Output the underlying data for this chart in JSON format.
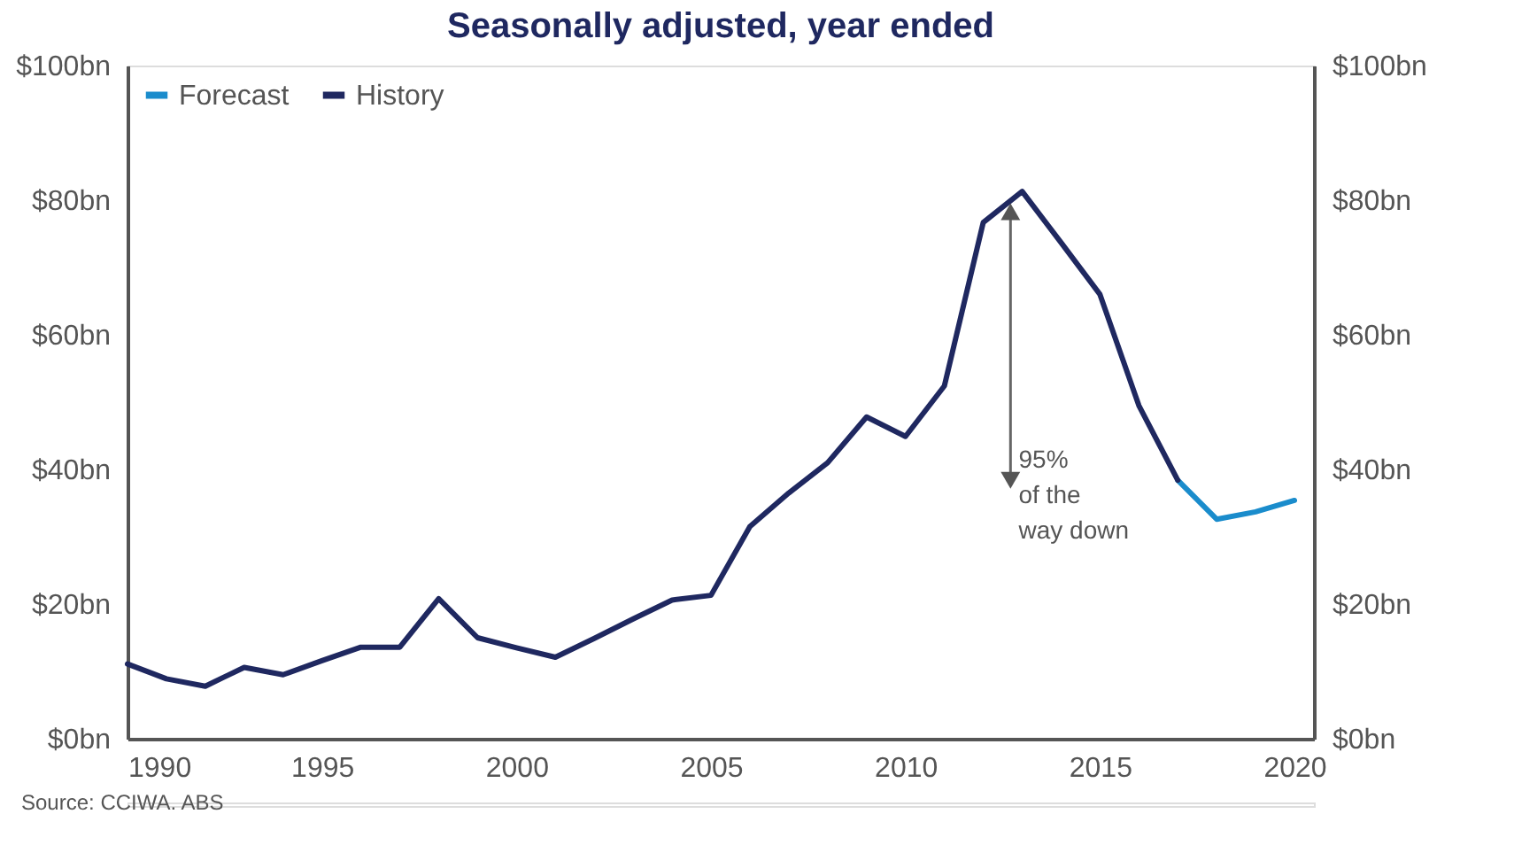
{
  "chart_data": {
    "type": "line",
    "title": "Seasonally adjusted, year ended",
    "xlim": [
      1990,
      2020.5
    ],
    "xticks": [
      1990,
      1995,
      2000,
      2005,
      2010,
      2015,
      2020
    ],
    "ylim": [
      0,
      100
    ],
    "yticks": [
      {
        "value": 0,
        "label": "$0bn"
      },
      {
        "value": 20,
        "label": "$20bn"
      },
      {
        "value": 40,
        "label": "$40bn"
      },
      {
        "value": 60,
        "label": "$60bn"
      },
      {
        "value": 80,
        "label": "$80bn"
      },
      {
        "value": 100,
        "label": "$100bn"
      }
    ],
    "y2lim": [
      0,
      100
    ],
    "y2ticks": [
      {
        "value": 0,
        "label": "$0bn"
      },
      {
        "value": 20,
        "label": "$20bn"
      },
      {
        "value": 40,
        "label": "$40bn"
      },
      {
        "value": 60,
        "label": "$60bn"
      },
      {
        "value": 80,
        "label": "$80bn"
      },
      {
        "value": 100,
        "label": "$100bn"
      }
    ],
    "series": [
      {
        "name": "Forecast",
        "color": "#1a8ccc",
        "x": [
          2017,
          2018,
          2019,
          2020
        ],
        "values": [
          38.4,
          32.6,
          33.7,
          35.4
        ]
      },
      {
        "name": "History",
        "color": "#1f2860",
        "x": [
          1990,
          1991,
          1992,
          1993,
          1994,
          1995,
          1996,
          1997,
          1998,
          1999,
          2000,
          2001,
          2002,
          2003,
          2004,
          2005,
          2006,
          2007,
          2008,
          2009,
          2010,
          2011,
          2012,
          2013,
          2014,
          2015,
          2016,
          2017
        ],
        "values": [
          11.1,
          8.9,
          7.8,
          10.6,
          9.5,
          11.6,
          13.6,
          13.6,
          20.8,
          15.0,
          13.5,
          12.1,
          14.9,
          17.8,
          20.6,
          21.3,
          31.5,
          36.5,
          41.0,
          47.8,
          44.9,
          52.4,
          76.7,
          81.3,
          73.7,
          66.0,
          49.5,
          38.4
        ]
      }
    ],
    "annotations": [
      "95%\nof the\nway down",
      "Source: CCIWA. ABS"
    ],
    "legend": "top left",
    "grid": false
  }
}
